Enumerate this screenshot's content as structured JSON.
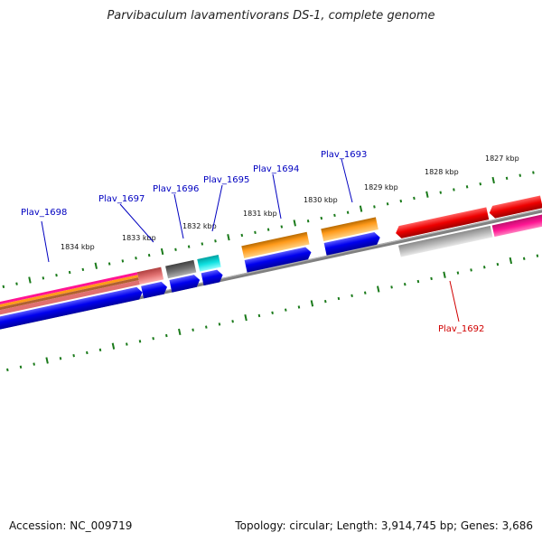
{
  "title": "Parvibaculum lavamentivorans DS-1, complete genome",
  "footer": {
    "accession_label": "Accession: NC_009719",
    "summary": "Topology: circular; Length: 3,914,745 bp; Genes: 3,686"
  },
  "kbp_labels": [
    "1827 kbp",
    "1828 kbp",
    "1829 kbp",
    "1830 kbp",
    "1831 kbp",
    "1832 kbp",
    "1833 kbp",
    "1834 kbp"
  ],
  "gene_labels": {
    "plav_1692": "Plav_1692",
    "plav_1693": "Plav_1693",
    "plav_1694": "Plav_1694",
    "plav_1695": "Plav_1695",
    "plav_1696": "Plav_1696",
    "plav_1697": "Plav_1697",
    "plav_1698": "Plav_1698"
  },
  "colors": {
    "backbone": "#808080",
    "ticks": "#1a7a1a",
    "label_blue": "#0000c0",
    "label_red": "#d00000",
    "cds_blue": "#0000ee",
    "orange": "#ff9a1a",
    "red": "#ee0000",
    "magenta": "#ff1493",
    "gray": "#707070",
    "light_gray": "#b8b8b8",
    "cyan": "#10e0e0",
    "salmon": "#e07070"
  }
}
